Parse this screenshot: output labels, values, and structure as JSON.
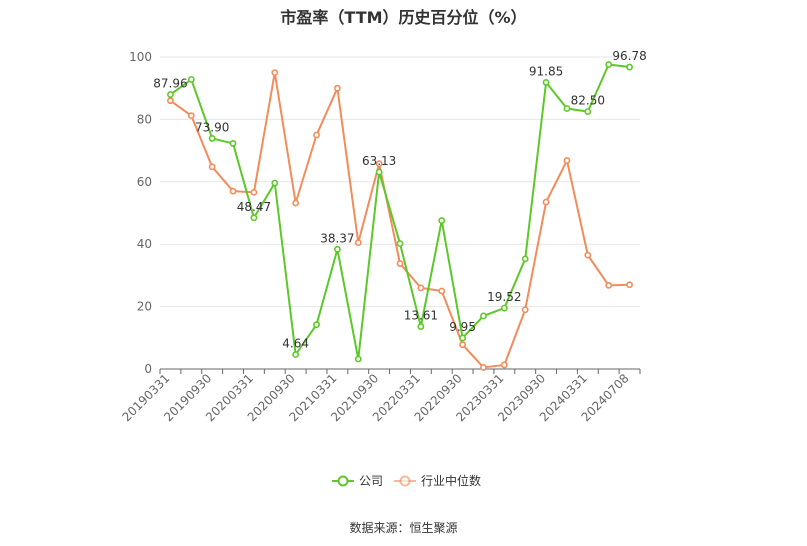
{
  "chart_data": {
    "type": "line",
    "title": "市盈率（TTM）历史百分位（%）",
    "source": "数据来源：恒生聚源",
    "ylim": [
      0,
      100
    ],
    "yticks": [
      0,
      20,
      40,
      60,
      80,
      100
    ],
    "grid": true,
    "legend_position": "bottom",
    "x": [
      "20190331",
      "20190630",
      "20190930",
      "20191231",
      "20200331",
      "20200630",
      "20200930",
      "20201231",
      "20210331",
      "20210630",
      "20210930",
      "20211231",
      "20220331",
      "20220630",
      "20220930",
      "20221231",
      "20230331",
      "20230630",
      "20230930",
      "20231231",
      "20240331",
      "20240630",
      "20240708"
    ],
    "x_tick_labels": [
      "20190331",
      "20190930",
      "20200331",
      "20200930",
      "20210331",
      "20210930",
      "20220331",
      "20220930",
      "20230331",
      "20230930",
      "20240331",
      "20240708"
    ],
    "series": [
      {
        "name": "公司",
        "color": "#5cc829",
        "values": [
          87.96,
          92.8,
          73.9,
          72.3,
          48.47,
          59.6,
          4.64,
          14.2,
          38.37,
          3.2,
          63.13,
          40.2,
          13.61,
          47.6,
          9.95,
          17.0,
          19.52,
          35.3,
          91.85,
          83.5,
          82.5,
          97.6,
          96.78
        ],
        "labels": {
          "0": "87.96",
          "2": "73.90",
          "4": "48.47",
          "6": "4.64",
          "8": "38.37",
          "10": "63.13",
          "12": "13.61",
          "14": "9.95",
          "16": "19.52",
          "18": "91.85",
          "20": "82.50",
          "22": "96.78"
        }
      },
      {
        "name": "行业中位数",
        "color": "#f28c5a",
        "values": [
          86.0,
          81.2,
          64.8,
          57.0,
          56.6,
          95.0,
          53.2,
          75.0,
          90.0,
          40.5,
          65.8,
          33.8,
          26.0,
          25.0,
          7.8,
          0.5,
          1.3,
          19.0,
          53.5,
          66.8,
          36.5,
          26.8,
          27.0
        ]
      }
    ]
  }
}
